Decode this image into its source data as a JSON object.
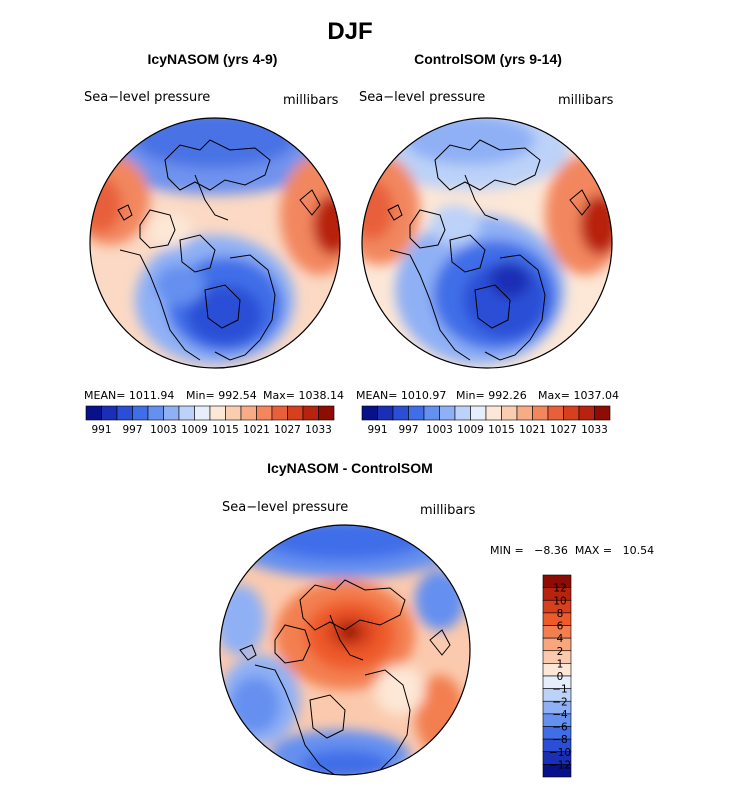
{
  "title": "DJF",
  "panels": {
    "left": {
      "subtitle": "IcyNASOM (yrs 4-9)",
      "variable": "Sea−level pressure",
      "units": "millibars",
      "stats": {
        "mean": "MEAN= 1011.94",
        "min": "Min= 992.54",
        "max": "Max= 1038.14"
      }
    },
    "right": {
      "subtitle": "ControlSOM (yrs 9-14)",
      "variable": "Sea−level pressure",
      "units": "millibars",
      "stats": {
        "mean": "MEAN= 1010.97",
        "min": "Min= 992.26",
        "max": "Max= 1037.04"
      }
    },
    "diff": {
      "subtitle": "IcyNASOM - ControlSOM",
      "variable": "Sea−level pressure",
      "units": "millibars",
      "stats": "MIN =   −8.36  MAX =   10.54"
    }
  },
  "colorbar_top": {
    "colors": [
      "#08108a",
      "#1a2fb5",
      "#2a4fd6",
      "#3f6ee8",
      "#6590f0",
      "#8fb0f5",
      "#bcd2f8",
      "#e6eefc",
      "#fde7d6",
      "#fbcdb0",
      "#f7ac86",
      "#f2875e",
      "#e8603a",
      "#d6401f",
      "#b82310",
      "#8e0c04"
    ],
    "ticks": [
      "991",
      "997",
      "1003",
      "1009",
      "1015",
      "1021",
      "1027",
      "1033"
    ]
  },
  "colorbar_diff": {
    "colors": [
      "#8e0c04",
      "#b82310",
      "#d6401f",
      "#ee5a2a",
      "#f37f50",
      "#f8a67e",
      "#fbcaae",
      "#fde7d6",
      "#e6eefc",
      "#bcd2f8",
      "#8fb0f5",
      "#6590f0",
      "#3f6ee8",
      "#2a4fd6",
      "#1a2fb5",
      "#08108a"
    ],
    "ticks": [
      "12",
      "10",
      "8",
      "6",
      "4",
      "2",
      "1",
      "0",
      "−1",
      "−2",
      "−4",
      "−6",
      "−8",
      "−10",
      "−12"
    ]
  }
}
